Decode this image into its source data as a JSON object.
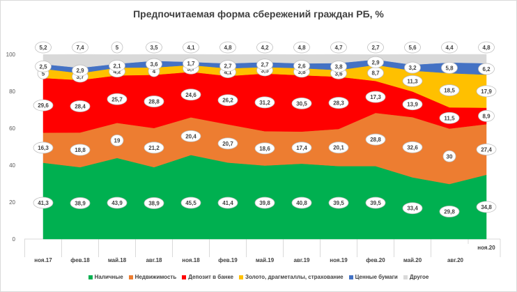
{
  "chart_data": {
    "type": "area",
    "stacked": true,
    "title": "Предпочитаемая форма сбережений граждан РБ, %",
    "xlabel": "",
    "ylabel": "",
    "ylim": [
      0,
      100
    ],
    "yticks": [
      "0",
      "20",
      "40",
      "60",
      "80",
      "100"
    ],
    "categories": [
      "ноя.17",
      "фев.18",
      "май.18",
      "авг.18",
      "ноя.18",
      "фев.19",
      "май.19",
      "авг.19",
      "ноя.19",
      "фев.20",
      "май.20",
      "авг.20",
      "ноя.20"
    ],
    "legend_position": "bottom",
    "series": [
      {
        "name": "Наличные",
        "color": "#00b050",
        "values": [
          41.3,
          38.9,
          43.9,
          38.9,
          45.5,
          41.4,
          39.8,
          40.8,
          39.5,
          39.5,
          33.4,
          29.8,
          34.8
        ],
        "labels": [
          "41,3",
          "38,9",
          "43,9",
          "38,9",
          "45,5",
          "41,4",
          "39,8",
          "40,8",
          "39,5",
          "39,5",
          "33,4",
          "29,8",
          "34,8"
        ]
      },
      {
        "name": "Недвижимость",
        "color": "#ed7d31",
        "values": [
          16.3,
          18.8,
          19,
          21.2,
          20.4,
          20.7,
          18.6,
          17.4,
          20.1,
          28.8,
          32.6,
          30,
          27.4
        ],
        "labels": [
          "16,3",
          "18,8",
          "19",
          "21,2",
          "20,4",
          "20,7",
          "18,6",
          "17,4",
          "20,1",
          "28,8",
          "32,6",
          "30",
          "27,4"
        ]
      },
      {
        "name": "Депозит в банке",
        "color": "#ff0000",
        "values": [
          29.6,
          28.4,
          25.7,
          28.8,
          24.6,
          26.2,
          31.2,
          30.5,
          28.3,
          17.3,
          13.9,
          11.5,
          8.9
        ],
        "labels": [
          "29,6",
          "28,4",
          "25,7",
          "28,8",
          "24,6",
          "26,2",
          "31,2",
          "30,5",
          "28,3",
          "17,3",
          "13,9",
          "11,5",
          "8,9"
        ]
      },
      {
        "name": "Золото, драгметаллы, страхование",
        "color": "#ffc000",
        "values": [
          5,
          3.7,
          4.2,
          4,
          3.7,
          4.1,
          3.5,
          3.8,
          3.6,
          8.7,
          11.3,
          18.5,
          17.9
        ],
        "labels": [
          "5",
          "3,7",
          "4,2",
          "4",
          "3,7",
          "4,1",
          "3,5",
          "3,8",
          "3,6",
          "8,7",
          "11,3",
          "18,5",
          "17,9"
        ]
      },
      {
        "name": "Ценные бумаги",
        "color": "#4472c4",
        "values": [
          2.5,
          2.9,
          2.1,
          3.6,
          1.7,
          2.7,
          2.7,
          2.6,
          3.8,
          2.9,
          3.2,
          5.8,
          6.2
        ],
        "labels": [
          "2,5",
          "2,9",
          "2,1",
          "3,6",
          "1,7",
          "2,7",
          "2,7",
          "2,6",
          "3,8",
          "2,9",
          "3,2",
          "5,8",
          "6,2"
        ]
      },
      {
        "name": "Другое",
        "color": "#d9d9d9",
        "values": [
          5.2,
          7.4,
          5,
          3.5,
          4.1,
          4.8,
          4.2,
          4.8,
          4.7,
          2.7,
          5.6,
          4.4,
          4.8
        ],
        "labels": [
          "5,2",
          "7,4",
          "5",
          "3,5",
          "4,1",
          "4,8",
          "4,2",
          "4,8",
          "4,7",
          "2,7",
          "5,6",
          "4,4",
          "4,8"
        ]
      }
    ]
  }
}
